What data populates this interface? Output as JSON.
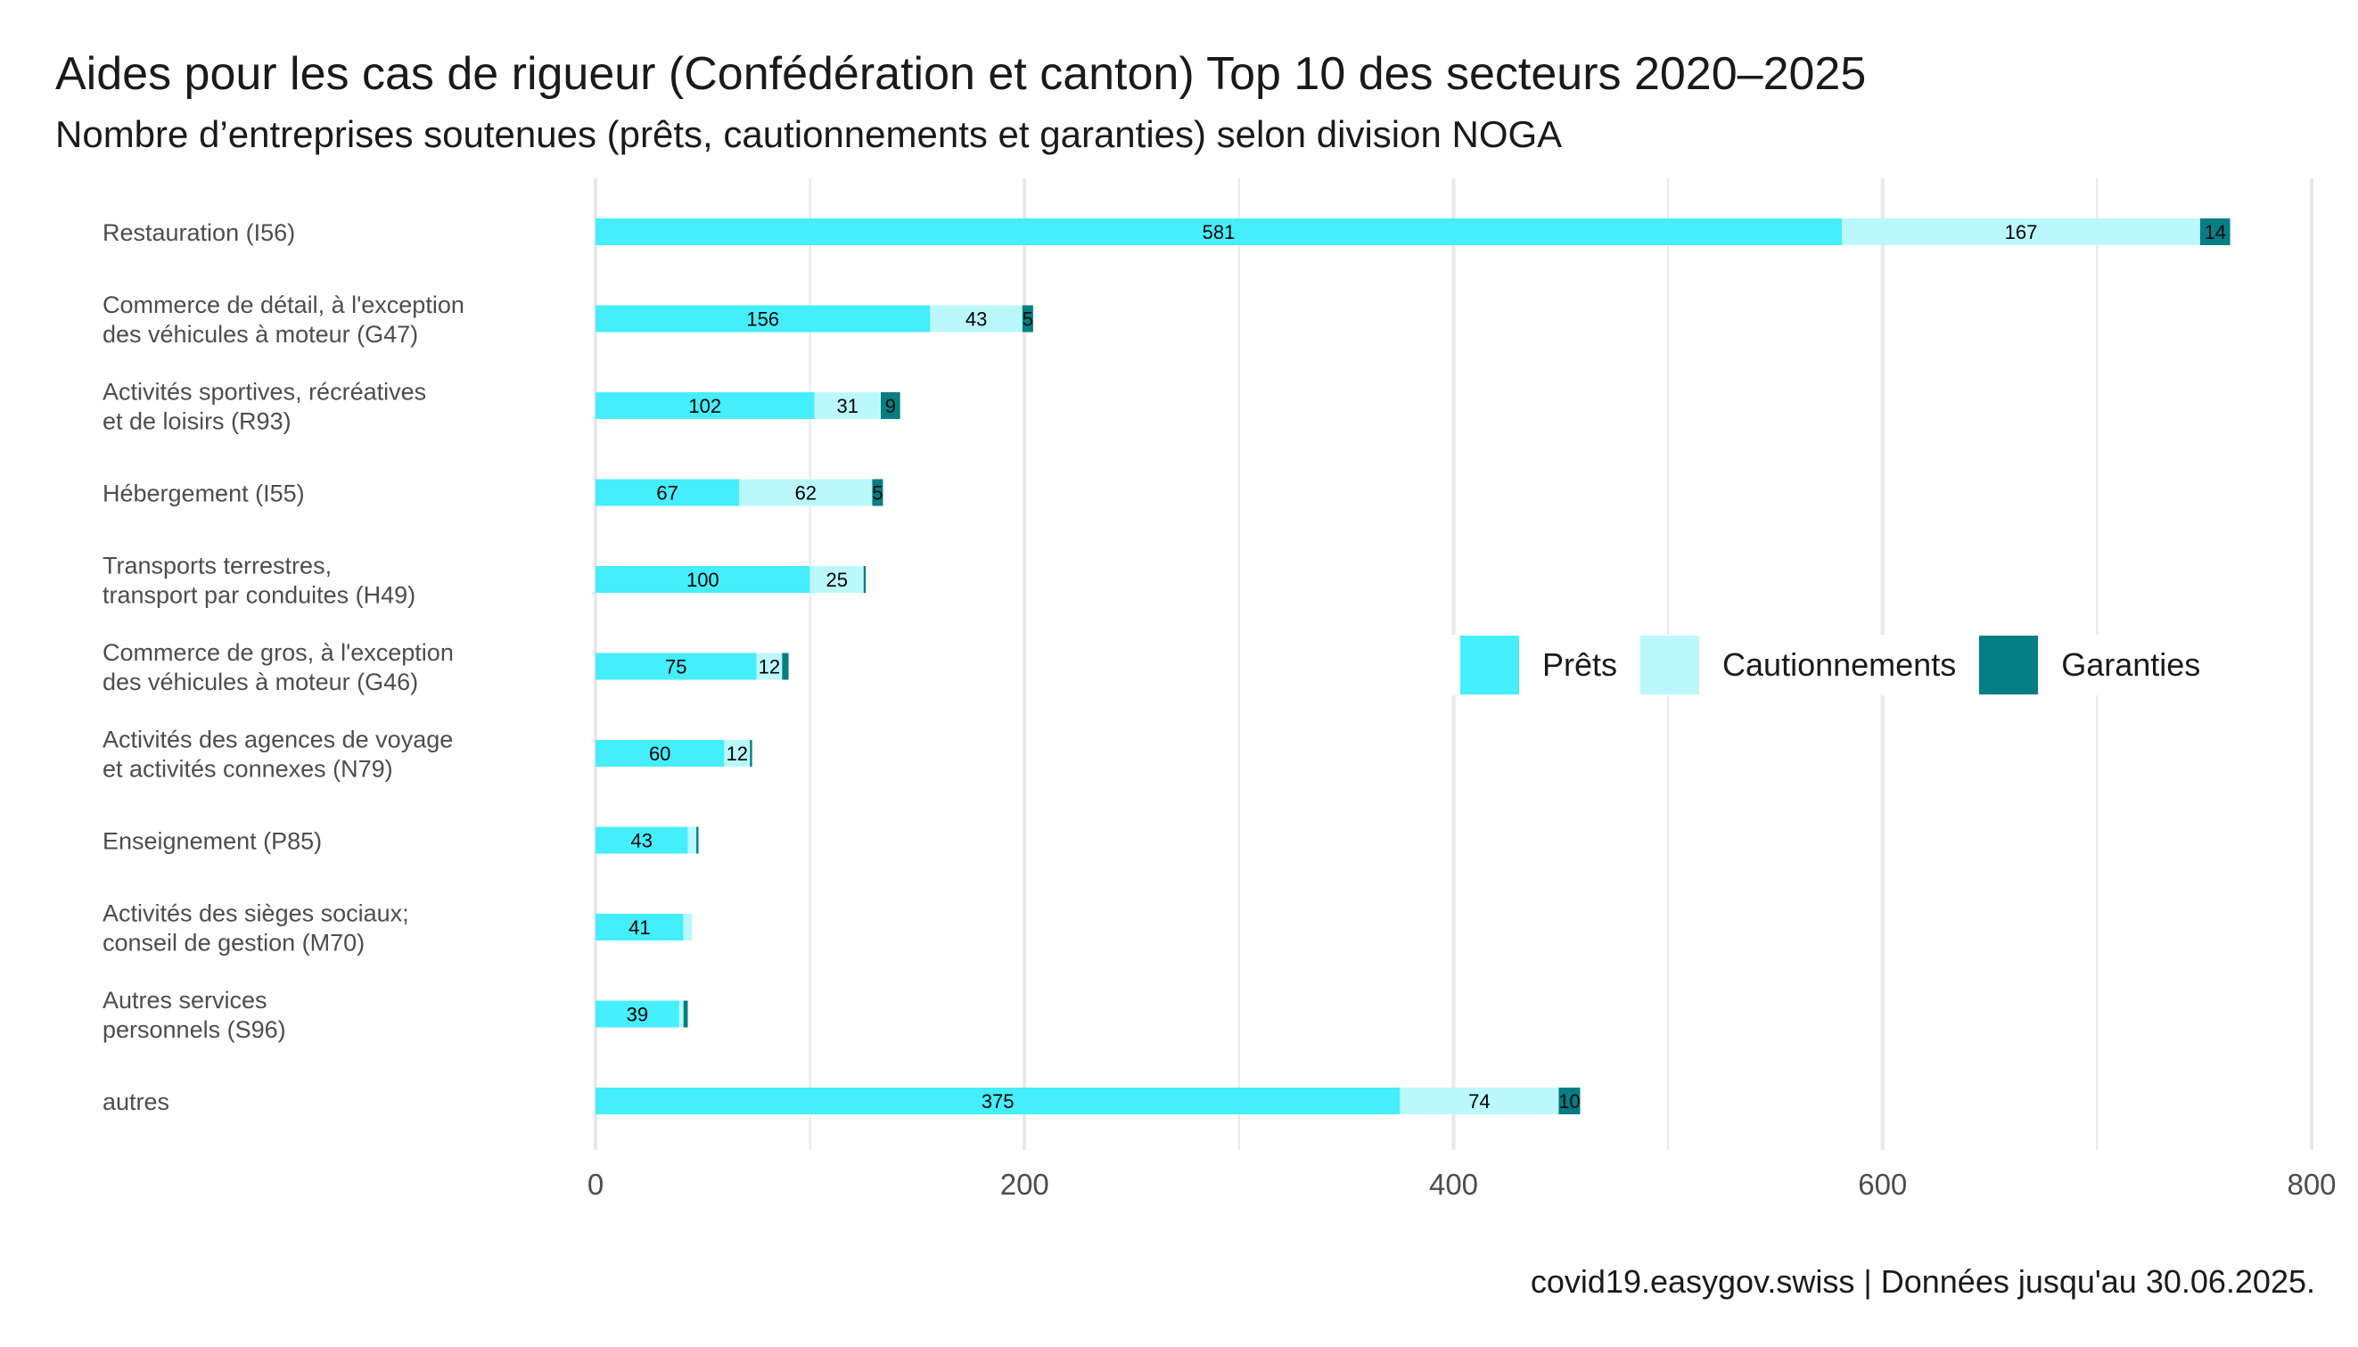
{
  "title": "Aides pour les cas de rigueur (Confédération et canton) Top 10 des secteurs 2020–2025",
  "subtitle": "Nombre d’entreprises soutenues (prêts, cautionnements et garanties) selon division NOGA",
  "caption": "covid19.easygov.swiss | Données jusqu'au 30.06.2025.",
  "colors": {
    "prets": "#44eefa",
    "cautionnements": "#bbf8fc",
    "garanties": "#047e82",
    "grid": "#e8e8e8",
    "category_text": "#4d4d4d",
    "tick_text": "#4d4d4d"
  },
  "legend": {
    "placement": "right",
    "items": [
      {
        "label": "Prêts",
        "color": "#44eefa"
      },
      {
        "label": "Cautionnements",
        "color": "#bbf8fc"
      },
      {
        "label": "Garanties",
        "color": "#047e82"
      }
    ]
  },
  "chart_data": {
    "type": "bar",
    "orientation": "horizontal",
    "stacked": true,
    "title": "Aides pour les cas de rigueur (Confédération et canton) Top 10 des secteurs 2020–2025",
    "subtitle": "Nombre d’entreprises soutenues (prêts, cautionnements et garanties) selon division NOGA",
    "xlabel": "",
    "ylabel": "",
    "xlim": [
      0,
      800
    ],
    "xticks": [
      0,
      200,
      400,
      600,
      800
    ],
    "grid": true,
    "categories": [
      "Restauration (I56)",
      "Commerce de détail, à l'exception\ndes véhicules à moteur (G47)",
      "Activités sportives, récréatives\net de loisirs (R93)",
      "Hébergement (I55)",
      "Transports terrestres,\ntransport par conduites (H49)",
      "Commerce de gros, à l'exception\ndes véhicules à moteur (G46)",
      "Activités des agences de voyage\net activités connexes (N79)",
      "Enseignement (P85)",
      "Activités des sièges sociaux;\nconseil de gestion (M70)",
      "Autres services\npersonnels (S96)",
      "autres"
    ],
    "series": [
      {
        "name": "Prêts",
        "values": [
          581,
          156,
          102,
          67,
          100,
          75,
          60,
          43,
          41,
          39,
          375
        ]
      },
      {
        "name": "Cautionnements",
        "values": [
          167,
          43,
          31,
          62,
          25,
          12,
          12,
          4,
          4,
          2,
          74
        ]
      },
      {
        "name": "Garanties",
        "values": [
          14,
          5,
          9,
          5,
          1,
          3,
          1,
          1,
          0,
          2,
          10
        ]
      }
    ],
    "data_labels": [
      [
        "581",
        "167",
        "14"
      ],
      [
        "156",
        "43",
        "5"
      ],
      [
        "102",
        "31",
        "9"
      ],
      [
        "67",
        "62",
        "5"
      ],
      [
        "100",
        "25",
        ""
      ],
      [
        "75",
        "12",
        ""
      ],
      [
        "60",
        "12",
        ""
      ],
      [
        "43",
        "",
        ""
      ],
      [
        "41",
        "",
        ""
      ],
      [
        "39",
        "",
        ""
      ],
      [
        "375",
        "74",
        "10"
      ]
    ]
  }
}
